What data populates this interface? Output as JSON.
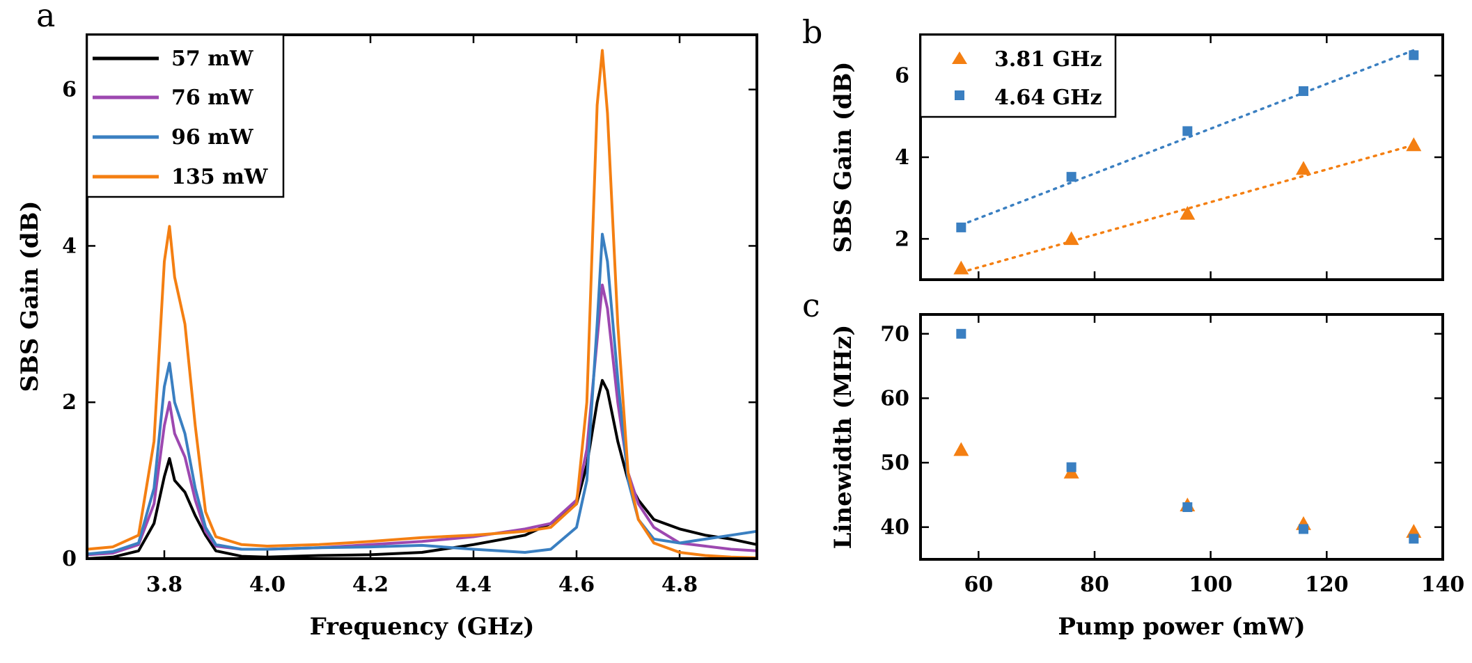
{
  "colors": {
    "black": "#000000",
    "purple": "#9d48b0",
    "blue": "#3a7fc1",
    "orange": "#f47f12"
  },
  "chart_data": [
    {
      "panel": "a",
      "type": "line",
      "xlabel": "Frequency (GHz)",
      "ylabel": "SBS Gain (dB)",
      "xlim": [
        3.65,
        4.95
      ],
      "ylim": [
        0,
        6.7
      ],
      "xticks": [
        3.8,
        4.0,
        4.2,
        4.4,
        4.6,
        4.8
      ],
      "xtick_labels": [
        "3.8",
        "4.0",
        "4.2",
        "4.4",
        "4.6",
        "4.8"
      ],
      "yticks": [
        0,
        2,
        4,
        6
      ],
      "ytick_labels": [
        "0",
        "2",
        "4",
        "6"
      ],
      "legend_position": "top-left",
      "series": [
        {
          "name": "57 mW",
          "color": "#000000",
          "x": [
            3.65,
            3.7,
            3.75,
            3.78,
            3.8,
            3.81,
            3.82,
            3.84,
            3.86,
            3.88,
            3.9,
            3.95,
            4.0,
            4.1,
            4.2,
            4.3,
            4.4,
            4.5,
            4.55,
            4.6,
            4.62,
            4.64,
            4.65,
            4.66,
            4.68,
            4.7,
            4.72,
            4.75,
            4.8,
            4.85,
            4.9,
            4.95
          ],
          "y": [
            0.0,
            0.02,
            0.1,
            0.45,
            1.05,
            1.28,
            1.0,
            0.85,
            0.55,
            0.3,
            0.1,
            0.03,
            0.02,
            0.04,
            0.05,
            0.08,
            0.18,
            0.3,
            0.45,
            0.7,
            1.2,
            2.0,
            2.28,
            2.15,
            1.5,
            1.0,
            0.75,
            0.5,
            0.38,
            0.3,
            0.25,
            0.18
          ]
        },
        {
          "name": "76 mW",
          "color": "#9d48b0",
          "x": [
            3.65,
            3.7,
            3.75,
            3.78,
            3.8,
            3.81,
            3.82,
            3.84,
            3.86,
            3.88,
            3.9,
            3.95,
            4.0,
            4.1,
            4.2,
            4.3,
            4.4,
            4.5,
            4.55,
            4.6,
            4.62,
            4.64,
            4.65,
            4.66,
            4.68,
            4.7,
            4.72,
            4.75,
            4.8,
            4.85,
            4.9,
            4.95
          ],
          "y": [
            0.05,
            0.07,
            0.18,
            0.7,
            1.7,
            2.0,
            1.6,
            1.3,
            0.75,
            0.35,
            0.16,
            0.12,
            0.12,
            0.14,
            0.18,
            0.22,
            0.28,
            0.38,
            0.45,
            0.75,
            1.4,
            2.8,
            3.5,
            3.2,
            2.0,
            1.1,
            0.7,
            0.4,
            0.2,
            0.16,
            0.12,
            0.1
          ]
        },
        {
          "name": "96 mW",
          "color": "#3a7fc1",
          "x": [
            3.65,
            3.7,
            3.75,
            3.78,
            3.8,
            3.81,
            3.82,
            3.84,
            3.86,
            3.88,
            3.9,
            3.95,
            4.0,
            4.1,
            4.2,
            4.3,
            4.4,
            4.5,
            4.55,
            4.6,
            4.62,
            4.64,
            4.65,
            4.66,
            4.68,
            4.7,
            4.72,
            4.75,
            4.8,
            4.85,
            4.9,
            4.95
          ],
          "y": [
            0.06,
            0.09,
            0.2,
            0.9,
            2.2,
            2.5,
            2.0,
            1.6,
            0.9,
            0.4,
            0.18,
            0.12,
            0.12,
            0.14,
            0.15,
            0.17,
            0.12,
            0.08,
            0.12,
            0.4,
            1.0,
            3.0,
            4.15,
            3.8,
            2.3,
            1.0,
            0.5,
            0.25,
            0.2,
            0.25,
            0.3,
            0.35
          ]
        },
        {
          "name": "135 mW",
          "color": "#f47f12",
          "x": [
            3.65,
            3.7,
            3.75,
            3.78,
            3.8,
            3.81,
            3.82,
            3.84,
            3.86,
            3.88,
            3.9,
            3.95,
            4.0,
            4.1,
            4.2,
            4.3,
            4.4,
            4.5,
            4.55,
            4.6,
            4.62,
            4.64,
            4.65,
            4.66,
            4.68,
            4.7,
            4.72,
            4.75,
            4.8,
            4.85,
            4.9,
            4.95
          ],
          "y": [
            0.12,
            0.15,
            0.3,
            1.5,
            3.8,
            4.25,
            3.6,
            3.0,
            1.7,
            0.6,
            0.28,
            0.18,
            0.16,
            0.18,
            0.22,
            0.27,
            0.3,
            0.35,
            0.4,
            0.7,
            2.0,
            5.8,
            6.5,
            5.7,
            3.0,
            1.1,
            0.5,
            0.2,
            0.08,
            0.04,
            0.02,
            0.01
          ]
        }
      ]
    },
    {
      "panel": "b",
      "type": "scatter",
      "xlabel": "",
      "ylabel": "SBS Gain (dB)",
      "xlim": [
        50,
        140
      ],
      "ylim": [
        1.0,
        7.0
      ],
      "xticks": [
        60,
        80,
        100,
        120,
        140
      ],
      "yticks": [
        2,
        4,
        6
      ],
      "ytick_labels": [
        "2",
        "4",
        "6"
      ],
      "legend_position": "top-left",
      "series": [
        {
          "name": "3.81 GHz",
          "marker": "triangle",
          "color": "#f47f12",
          "x": [
            57,
            76,
            96,
            116,
            135
          ],
          "y": [
            1.28,
            2.0,
            2.62,
            3.72,
            4.3
          ],
          "fit": [
            1.18,
            4.3
          ]
        },
        {
          "name": "4.64 GHz",
          "marker": "square",
          "color": "#3a7fc1",
          "x": [
            57,
            76,
            96,
            116,
            135
          ],
          "y": [
            2.28,
            3.52,
            4.64,
            5.62,
            6.5
          ],
          "fit": [
            2.34,
            6.62
          ]
        }
      ]
    },
    {
      "panel": "c",
      "type": "scatter",
      "xlabel": "Pump power (mW)",
      "ylabel": "Linewidth (MHz)",
      "xlim": [
        50,
        140
      ],
      "ylim": [
        35,
        73
      ],
      "xticks": [
        60,
        80,
        100,
        120,
        140
      ],
      "xtick_labels": [
        "60",
        "80",
        "100",
        "120",
        "140"
      ],
      "yticks": [
        40,
        50,
        60,
        70
      ],
      "ytick_labels": [
        "40",
        "50",
        "60",
        "70"
      ],
      "series": [
        {
          "name": "3.81 GHz",
          "marker": "triangle",
          "color": "#f47f12",
          "x": [
            57,
            76,
            96,
            116,
            135
          ],
          "y": [
            52.0,
            48.5,
            43.4,
            40.5,
            39.3
          ]
        },
        {
          "name": "4.64 GHz",
          "marker": "square",
          "color": "#3a7fc1",
          "x": [
            57,
            76,
            96,
            116,
            135
          ],
          "y": [
            70.0,
            49.3,
            43.1,
            39.7,
            38.2
          ]
        }
      ]
    }
  ]
}
